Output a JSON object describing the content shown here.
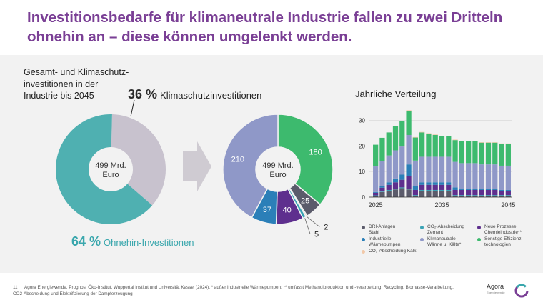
{
  "title": "Investitionsbedarfe für klimaneutrale Industrie fallen zu zwei Dritteln ohnehin an – diese können umgelenkt werden.",
  "left_label": "Gesamt- und Klimaschutz-\ninvestitionen in der\nIndustrie bis 2045",
  "klima": {
    "pct": "36 %",
    "text": "Klimaschutzinvestitionen"
  },
  "ohnehin": {
    "pct": "64 %",
    "text": "Ohnehin-Investitionen"
  },
  "dist_title": "Jährliche Verteilung",
  "footer": {
    "page": "11",
    "text": "Agora Energiewende, Prognos, Öko-Institut, Wuppertal Institut und Universität Kassel (2024). * außer industrielle Wärmepumpen; ** umfasst Methanolproduktion und -verarbeitung, Recycling, Biomasse-Verarbeitung, CO2-Abscheidung und Elektrifizierung der Dampferzeugung"
  },
  "logo": {
    "name": "Agora",
    "sub": "Energiewende"
  },
  "colors": {
    "ohnehin": "#4fb0b1",
    "klima_gray": "#c8c2ce",
    "dri": "#5b5b6b",
    "ccs_zement": "#3aa3b5",
    "neue_prozesse": "#5e2f8e",
    "waermepumpen": "#2b7fb8",
    "waerme_kaelte": "#8f98c8",
    "effizienz": "#3dba6e",
    "ccs_kalk": "#f2c9a9"
  },
  "chart_data": [
    {
      "type": "pie",
      "center_label": "499 Mrd.\nEuro",
      "slices": [
        {
          "name": "Ohnehin-Investitionen",
          "percent": 64,
          "color": "#4fb0b1"
        },
        {
          "name": "Klimaschutzinvestitionen",
          "percent": 36,
          "color": "#c8c2ce"
        }
      ]
    },
    {
      "type": "pie",
      "center_label": "499 Mrd.\nEuro",
      "slices": [
        {
          "name": "Sonstige Effizienztechnologien",
          "value": 180,
          "label": "180",
          "color": "#3dba6e"
        },
        {
          "name": "DRI-Anlagen Stahl",
          "value": 25,
          "label": "25",
          "color": "#5b5b6b"
        },
        {
          "name": "CO₂-Abscheidung Kalk",
          "value": 2,
          "label": "2",
          "color": "#f2c9a9"
        },
        {
          "name": "CO₂-Abscheidung Zement",
          "value": 5,
          "label": "5",
          "color": "#3aa3b5"
        },
        {
          "name": "Neue Prozesse Chemieindustrie**",
          "value": 40,
          "label": "40",
          "color": "#5e2f8e"
        },
        {
          "name": "Industrielle Wärmepumpen",
          "value": 37,
          "label": "37",
          "color": "#2b7fb8"
        },
        {
          "name": "Klimaneutrale Wärme u. Kälte*",
          "value": 210,
          "label": "210",
          "color": "#8f98c8"
        }
      ]
    },
    {
      "type": "bar",
      "stacked": true,
      "title": "Jährliche Verteilung",
      "ylim": [
        0,
        34
      ],
      "yticks": [
        0,
        10,
        20,
        30
      ],
      "x": [
        2025,
        2026,
        2027,
        2028,
        2029,
        2030,
        2031,
        2032,
        2033,
        2034,
        2035,
        2036,
        2037,
        2038,
        2039,
        2040,
        2041,
        2042,
        2043,
        2044,
        2045
      ],
      "xtick_labels": [
        "2025",
        "2035",
        "2045"
      ],
      "series": [
        {
          "name": "DRI-Anlagen Stahl",
          "color": "#5b5b6b",
          "values": [
            0.5,
            2.0,
            2.5,
            3.0,
            3.5,
            3.0,
            0.5,
            2.5,
            2.5,
            2.5,
            2.5,
            2.5,
            0.5,
            0.5,
            0.5,
            0.5,
            0.5,
            0.5,
            0.5,
            0.5,
            0.5
          ]
        },
        {
          "name": "CO₂-Abscheidung Zement",
          "color": "#3aa3b5",
          "values": [
            0.2,
            0.2,
            0.3,
            0.3,
            0.3,
            0.3,
            0.3,
            0.3,
            0.3,
            0.3,
            0.3,
            0.3,
            0.3,
            0.3,
            0.3,
            0.3,
            0.3,
            0.3,
            0.3,
            0.3,
            0.3
          ]
        },
        {
          "name": "Neue Prozesse Chemieindustrie**",
          "color": "#5e2f8e",
          "values": [
            1.0,
            1.5,
            2.0,
            2.5,
            3.0,
            5.0,
            2.0,
            2.0,
            2.0,
            2.0,
            2.0,
            2.0,
            2.0,
            2.0,
            2.0,
            2.0,
            2.0,
            2.0,
            2.0,
            1.5,
            1.5
          ]
        },
        {
          "name": "Industrielle Wärmepumpen",
          "color": "#2b7fb8",
          "values": [
            0.3,
            0.5,
            1.0,
            1.5,
            2.0,
            4.5,
            1.5,
            1.0,
            1.0,
            1.0,
            1.0,
            1.0,
            1.0,
            0.5,
            0.5,
            0.5,
            0.5,
            0.5,
            0.5,
            0.5,
            0.5
          ]
        },
        {
          "name": "Klimaneutrale Wärme u. Kälte*",
          "color": "#8f98c8",
          "values": [
            10.0,
            10.0,
            10.5,
            11.0,
            11.0,
            11.5,
            10.0,
            10.0,
            10.0,
            10.0,
            10.0,
            10.0,
            10.0,
            10.0,
            10.0,
            10.0,
            9.5,
            9.5,
            9.5,
            9.5,
            9.5
          ]
        },
        {
          "name": "Sonstige Effizienztechnologien",
          "color": "#3dba6e",
          "values": [
            8.5,
            9.0,
            9.0,
            9.5,
            10.0,
            9.5,
            9.0,
            9.5,
            9.0,
            8.5,
            8.0,
            8.0,
            8.5,
            8.5,
            8.5,
            8.5,
            8.5,
            8.5,
            8.5,
            8.5,
            8.5
          ]
        },
        {
          "name": "CO₂-Abscheidung Kalk",
          "color": "#f2c9a9",
          "values": [
            0,
            0,
            0,
            0,
            0,
            0.2,
            0.2,
            0.2,
            0.2,
            0.2,
            0.2,
            0.2,
            0.2,
            0.2,
            0.2,
            0.2,
            0.2,
            0.2,
            0.2,
            0.2,
            0.2
          ]
        }
      ]
    }
  ],
  "legend": [
    {
      "label": "DRI-Anlagen\nStahl",
      "color": "#5b5b6b"
    },
    {
      "label": "CO₂-Abscheidung\nZement",
      "color": "#3aa3b5"
    },
    {
      "label": "Neue Prozesse\nChemieindustrie**",
      "color": "#5e2f8e"
    },
    {
      "label": "Industrielle\nWärmepumpen",
      "color": "#2b7fb8"
    },
    {
      "label": "Klimaneutrale\nWärme u. Kälte*",
      "color": "#8f98c8"
    },
    {
      "label": "Sonstige Effizienz-\ntechnologien",
      "color": "#3dba6e"
    },
    {
      "label": "CO₂-Abscheidung Kalk",
      "color": "#f2c9a9"
    }
  ]
}
